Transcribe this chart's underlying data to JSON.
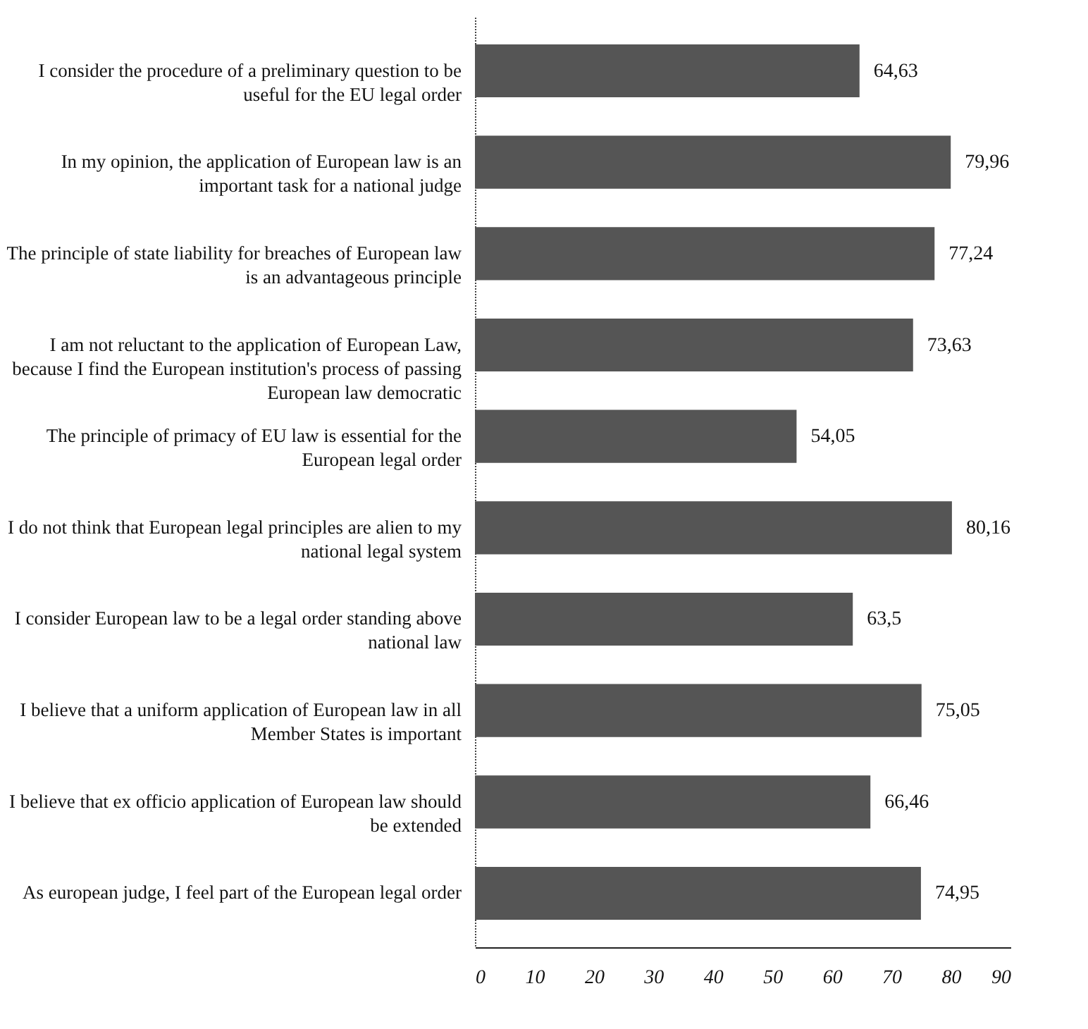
{
  "chart_data": {
    "type": "bar",
    "orientation": "horizontal",
    "categories": [
      "I consider the procedure of a preliminary question to be useful for the EU legal order",
      "In my opinion, the application of European law is an important task for a national judge",
      "The principle of state liability for breaches of European law is an advantageous principle",
      "I am not reluctant to the application of European Law, because I find the European institution's process of passing European law democratic",
      "The principle of primacy of EU law is essential for the European legal order",
      "I do not think that European legal principles are alien to my national legal system",
      "I consider European law to be a legal order standing above national law",
      "I believe that a uniform application of European law in all Member States is important",
      "I believe that ex officio application of European law should be extended",
      "As european judge, I feel part of the European legal order"
    ],
    "values": [
      64.63,
      79.96,
      77.24,
      73.63,
      54.05,
      80.16,
      63.5,
      75.05,
      66.46,
      74.95
    ],
    "value_labels": [
      "64,63",
      "79,96",
      "77,24",
      "73,63",
      "54,05",
      "80,16",
      "63,5",
      "75,05",
      "66,46",
      "74,95"
    ],
    "color": "#555555",
    "xlim": [
      0,
      90
    ],
    "xticks": [
      0,
      10,
      20,
      30,
      40,
      50,
      60,
      70,
      80,
      90
    ],
    "grid": false
  }
}
